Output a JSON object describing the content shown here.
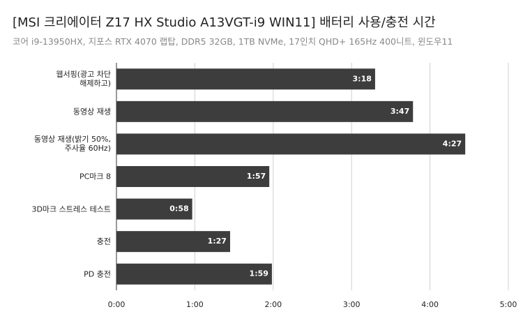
{
  "chart_data": {
    "type": "bar",
    "orientation": "horizontal",
    "title": "[MSI 크리에이터 Z17 HX Studio A13VGT-i9 WIN11] 배터리 사용/충전 시간",
    "subtitle": "코어 i9-13950HX, 지포스 RTX 4070 랩탑, DDR5 32GB, 1TB NVMe, 17인치 QHD+ 165Hz 400니트, 윈도우11",
    "categories": [
      "웹서핑(광고 차단\n해제하고)",
      "동영상 재생",
      "동영상 재생(밝기 50%,\n주사율 60Hz)",
      "PC마크 8",
      "3D마크 스트레스 테스트",
      "충전",
      "PD 충전"
    ],
    "values": [
      198,
      227,
      267,
      117,
      58,
      87,
      119
    ],
    "value_labels": [
      "3:18",
      "3:47",
      "4:27",
      "1:57",
      "0:58",
      "1:27",
      "1:59"
    ],
    "color": "#3d3d3d",
    "xlim": [
      0,
      300
    ],
    "xticks": [
      {
        "value": 0,
        "label": "0:00"
      },
      {
        "value": 60,
        "label": "1:00"
      },
      {
        "value": 120,
        "label": "2:00"
      },
      {
        "value": 180,
        "label": "3:00"
      },
      {
        "value": 240,
        "label": "4:00"
      },
      {
        "value": 300,
        "label": "5:00"
      }
    ],
    "grid": true
  }
}
